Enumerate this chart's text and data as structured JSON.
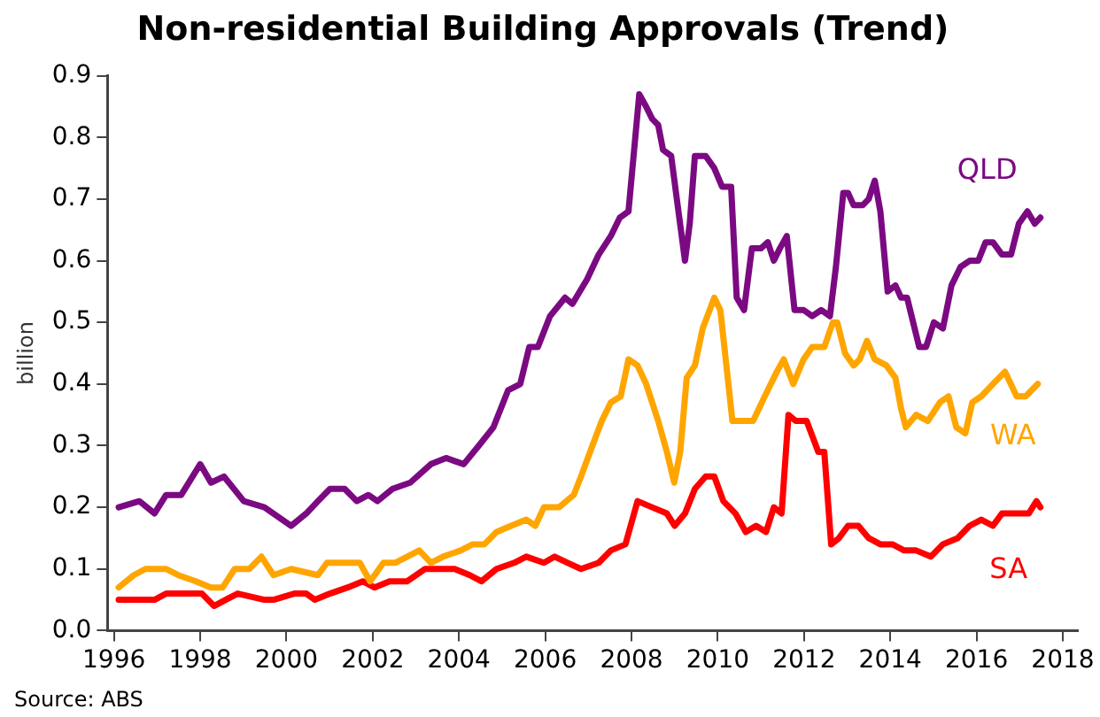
{
  "chart_data": {
    "type": "line",
    "title": "Non-residential Building Approvals (Trend)",
    "ylabel": "billion",
    "annotations": [
      "Source: ABS"
    ],
    "xlim": [
      1995.85,
      2018.35
    ],
    "xticks": [
      1996,
      1998,
      2000,
      2002,
      2004,
      2006,
      2008,
      2010,
      2012,
      2014,
      2016,
      2018
    ],
    "ylim": [
      0,
      0.9
    ],
    "yticks": [
      {
        "value": 0,
        "label": "0.0"
      },
      0.1,
      0.2,
      0.3,
      0.4,
      0.5,
      0.6,
      0.7,
      0.8,
      0.9
    ],
    "grid": false,
    "legend": false,
    "marker": "none",
    "line_style": "solid",
    "series": [
      {
        "name": "QLD",
        "color": "#7b0a82",
        "x": [
          1996.11,
          1996.59,
          1996.94,
          1997.21,
          1997.56,
          1998.0,
          1998.25,
          1998.55,
          1999.01,
          1999.49,
          2000.11,
          2000.46,
          2000.73,
          2001.01,
          2001.35,
          2001.63,
          2001.9,
          2002.11,
          2002.46,
          2002.87,
          2003.35,
          2003.7,
          2004.11,
          2004.46,
          2004.8,
          2005.14,
          2005.42,
          2005.63,
          2005.83,
          2006.11,
          2006.46,
          2006.63,
          2006.97,
          2007.24,
          2007.52,
          2007.73,
          2007.93,
          2008.18,
          2008.34,
          2008.48,
          2008.62,
          2008.73,
          2008.92,
          2009.07,
          2009.24,
          2009.35,
          2009.47,
          2009.72,
          2009.92,
          2010.1,
          2010.31,
          2010.44,
          2010.61,
          2010.79,
          2011.0,
          2011.16,
          2011.3,
          2011.44,
          2011.6,
          2011.78,
          2011.99,
          2012.19,
          2012.4,
          2012.6,
          2012.74,
          2012.91,
          2013.02,
          2013.15,
          2013.36,
          2013.5,
          2013.64,
          2013.77,
          2013.94,
          2014.12,
          2014.25,
          2014.39,
          2014.53,
          2014.67,
          2014.83,
          2015.01,
          2015.22,
          2015.42,
          2015.63,
          2015.84,
          2016.04,
          2016.21,
          2016.38,
          2016.59,
          2016.8,
          2016.98,
          2017.18,
          2017.35,
          2017.48
        ],
        "values": [
          0.2,
          0.21,
          0.19,
          0.22,
          0.22,
          0.27,
          0.24,
          0.25,
          0.21,
          0.2,
          0.17,
          0.19,
          0.21,
          0.23,
          0.23,
          0.21,
          0.22,
          0.21,
          0.23,
          0.24,
          0.27,
          0.28,
          0.27,
          0.3,
          0.33,
          0.39,
          0.4,
          0.46,
          0.46,
          0.51,
          0.54,
          0.53,
          0.57,
          0.61,
          0.64,
          0.67,
          0.68,
          0.87,
          0.85,
          0.83,
          0.82,
          0.78,
          0.77,
          0.69,
          0.6,
          0.66,
          0.77,
          0.77,
          0.75,
          0.72,
          0.72,
          0.54,
          0.52,
          0.62,
          0.62,
          0.63,
          0.6,
          0.62,
          0.64,
          0.52,
          0.52,
          0.51,
          0.52,
          0.51,
          0.59,
          0.71,
          0.71,
          0.69,
          0.69,
          0.7,
          0.73,
          0.68,
          0.55,
          0.56,
          0.54,
          0.54,
          0.5,
          0.46,
          0.46,
          0.5,
          0.49,
          0.56,
          0.59,
          0.6,
          0.6,
          0.63,
          0.63,
          0.61,
          0.61,
          0.66,
          0.68,
          0.66,
          0.67
        ]
      },
      {
        "name": "WA",
        "color": "#ffa500",
        "x": [
          1996.11,
          1996.46,
          1996.73,
          1997.01,
          1997.21,
          1997.49,
          1997.9,
          1998.25,
          1998.52,
          1998.8,
          1999.14,
          1999.42,
          1999.7,
          2000.11,
          2000.73,
          2000.94,
          2001.28,
          2001.7,
          2001.94,
          2002.25,
          2002.52,
          2003.08,
          2003.35,
          2003.63,
          2004.04,
          2004.32,
          2004.59,
          2004.87,
          2005.21,
          2005.56,
          2005.77,
          2005.97,
          2006.32,
          2006.66,
          2006.83,
          2007.04,
          2007.31,
          2007.52,
          2007.75,
          2007.93,
          2008.14,
          2008.34,
          2008.62,
          2008.82,
          2008.99,
          2009.13,
          2009.28,
          2009.47,
          2009.65,
          2009.92,
          2010.06,
          2010.2,
          2010.34,
          2010.54,
          2010.82,
          2011.09,
          2011.37,
          2011.53,
          2011.75,
          2011.99,
          2012.19,
          2012.47,
          2012.67,
          2012.77,
          2012.95,
          2013.15,
          2013.29,
          2013.46,
          2013.64,
          2013.91,
          2014.12,
          2014.25,
          2014.36,
          2014.6,
          2014.87,
          2015.15,
          2015.35,
          2015.53,
          2015.74,
          2015.9,
          2016.11,
          2016.38,
          2016.66,
          2016.93,
          2017.14,
          2017.42
        ],
        "values": [
          0.07,
          0.09,
          0.1,
          0.1,
          0.1,
          0.09,
          0.08,
          0.07,
          0.07,
          0.1,
          0.1,
          0.12,
          0.09,
          0.1,
          0.09,
          0.11,
          0.11,
          0.11,
          0.08,
          0.11,
          0.11,
          0.13,
          0.11,
          0.12,
          0.13,
          0.14,
          0.14,
          0.16,
          0.17,
          0.18,
          0.17,
          0.2,
          0.2,
          0.22,
          0.25,
          0.29,
          0.34,
          0.37,
          0.38,
          0.44,
          0.43,
          0.4,
          0.34,
          0.29,
          0.24,
          0.29,
          0.41,
          0.43,
          0.49,
          0.54,
          0.52,
          0.43,
          0.34,
          0.34,
          0.34,
          0.38,
          0.42,
          0.44,
          0.4,
          0.44,
          0.46,
          0.46,
          0.5,
          0.5,
          0.45,
          0.43,
          0.44,
          0.47,
          0.44,
          0.43,
          0.41,
          0.36,
          0.33,
          0.35,
          0.34,
          0.37,
          0.38,
          0.33,
          0.32,
          0.37,
          0.38,
          0.4,
          0.42,
          0.38,
          0.38,
          0.4
        ]
      },
      {
        "name": "SA",
        "color": "#ff0000",
        "x": [
          1996.11,
          1996.59,
          1996.94,
          1997.21,
          1997.7,
          1998.04,
          1998.32,
          1998.59,
          1998.87,
          1999.49,
          1999.7,
          2000.18,
          2000.46,
          2000.66,
          2001.01,
          2001.42,
          2001.77,
          2002.04,
          2002.39,
          2002.8,
          2003.21,
          2003.49,
          2003.9,
          2004.25,
          2004.52,
          2004.87,
          2005.28,
          2005.56,
          2005.97,
          2006.22,
          2006.52,
          2006.83,
          2007.24,
          2007.52,
          2007.86,
          2008.14,
          2008.48,
          2008.82,
          2009.0,
          2009.24,
          2009.47,
          2009.72,
          2009.92,
          2010.13,
          2010.41,
          2010.65,
          2010.89,
          2011.12,
          2011.3,
          2011.48,
          2011.64,
          2011.81,
          2012.06,
          2012.33,
          2012.47,
          2012.63,
          2012.81,
          2013.02,
          2013.26,
          2013.5,
          2013.77,
          2014.05,
          2014.32,
          2014.6,
          2014.94,
          2015.22,
          2015.56,
          2015.84,
          2016.11,
          2016.38,
          2016.59,
          2016.8,
          2017.0,
          2017.21,
          2017.39,
          2017.48
        ],
        "values": [
          0.05,
          0.05,
          0.05,
          0.06,
          0.06,
          0.06,
          0.04,
          0.05,
          0.06,
          0.05,
          0.05,
          0.06,
          0.06,
          0.05,
          0.06,
          0.07,
          0.08,
          0.07,
          0.08,
          0.08,
          0.1,
          0.1,
          0.1,
          0.09,
          0.08,
          0.1,
          0.11,
          0.12,
          0.11,
          0.12,
          0.11,
          0.1,
          0.11,
          0.13,
          0.14,
          0.21,
          0.2,
          0.19,
          0.17,
          0.19,
          0.23,
          0.25,
          0.25,
          0.21,
          0.19,
          0.16,
          0.17,
          0.16,
          0.2,
          0.19,
          0.35,
          0.34,
          0.34,
          0.29,
          0.29,
          0.14,
          0.15,
          0.17,
          0.17,
          0.15,
          0.14,
          0.14,
          0.13,
          0.13,
          0.12,
          0.14,
          0.15,
          0.17,
          0.18,
          0.17,
          0.19,
          0.19,
          0.19,
          0.19,
          0.21,
          0.2
        ]
      }
    ]
  }
}
